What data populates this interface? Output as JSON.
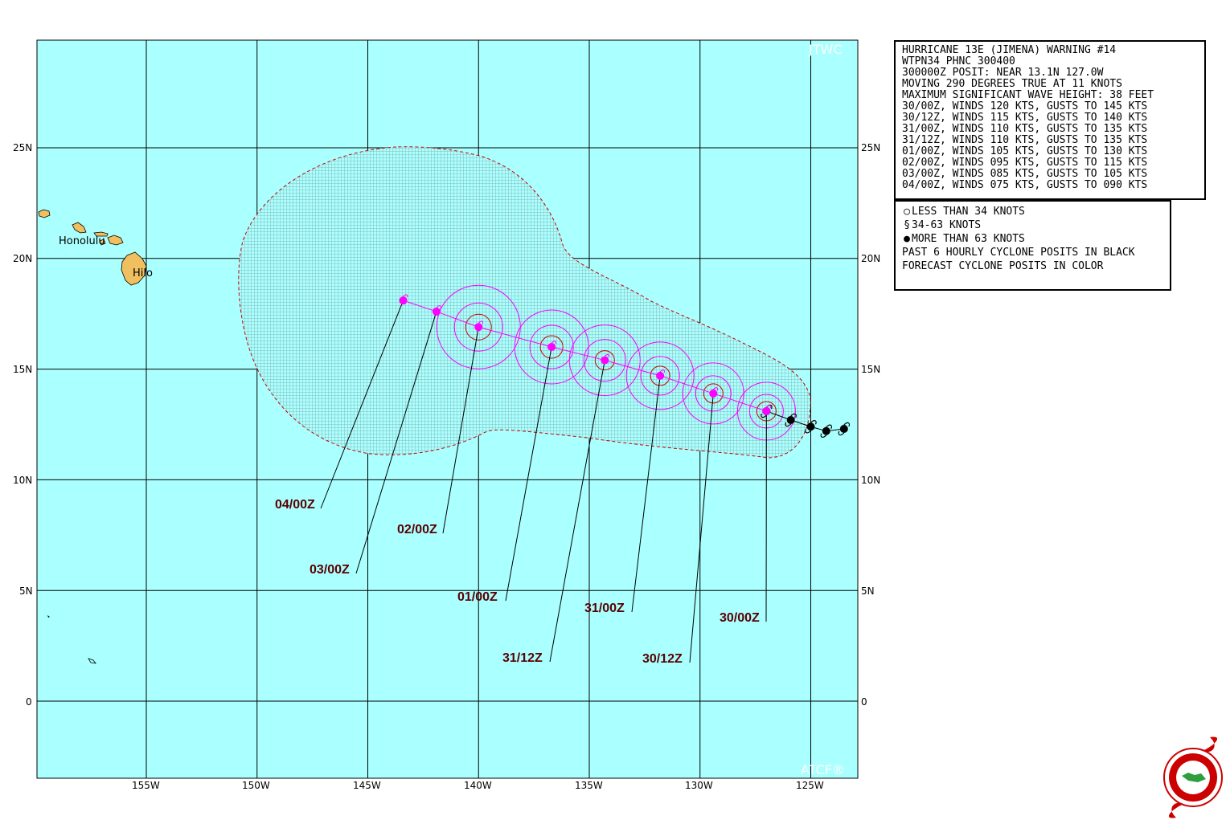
{
  "map": {
    "corner_top": "JTWC",
    "corner_bottom": "ATCF®",
    "lon_ticks": [
      "155W",
      "150W",
      "145W",
      "140W",
      "135W",
      "130W",
      "125W"
    ],
    "lat_ticks": [
      "25N",
      "20N",
      "15N",
      "10N",
      "5N",
      "0"
    ],
    "cities": [
      "Honolulu",
      "Hilo"
    ],
    "colors": {
      "ocean": "#aaffff",
      "land": "#f0c060",
      "forecast": "#ff00ff",
      "past": "#000000",
      "danger": "#cc0000",
      "label": "#5a0000"
    },
    "time_labels": [
      "04/00Z",
      "03/00Z",
      "02/00Z",
      "01/00Z",
      "31/12Z",
      "31/00Z",
      "30/12Z",
      "30/00Z"
    ]
  },
  "warning": {
    "lines": [
      "HURRICANE 13E (JIMENA) WARNING #14",
      "WTPN34 PHNC 300400",
      "300000Z POSIT: NEAR 13.1N 127.0W",
      "MOVING 290 DEGREES TRUE AT 11 KNOTS",
      "MAXIMUM SIGNIFICANT WAVE HEIGHT: 38 FEET",
      "30/00Z, WINDS 120 KTS, GUSTS TO 145 KTS",
      "30/12Z, WINDS 115 KTS, GUSTS TO 140 KTS",
      "31/00Z, WINDS 110 KTS, GUSTS TO 135 KTS",
      "31/12Z, WINDS 110 KTS, GUSTS TO 135 KTS",
      "01/00Z, WINDS 105 KTS, GUSTS TO 130 KTS",
      "02/00Z, WINDS 095 KTS, GUSTS TO 115 KTS",
      "03/00Z, WINDS 085 KTS, GUSTS TO 105 KTS",
      "04/00Z, WINDS 075 KTS, GUSTS TO 090 KTS"
    ]
  },
  "legend": {
    "less_than_34": "LESS THAN 34 KNOTS",
    "between_34_63": "34-63 KNOTS",
    "more_than_63": "MORE THAN 63 KNOTS",
    "past_note": "PAST 6 HOURLY CYCLONE POSITS IN BLACK",
    "forecast_note": "FORECAST CYCLONE POSITS IN COLOR"
  },
  "track": {
    "past": [
      {
        "lat": 12.3,
        "lon": -123.5
      },
      {
        "lat": 12.2,
        "lon": -124.3
      },
      {
        "lat": 12.4,
        "lon": -125.0
      },
      {
        "lat": 12.7,
        "lon": -125.9
      },
      {
        "lat": 13.1,
        "lon": -127.0
      }
    ],
    "forecast": [
      {
        "time": "30/00Z",
        "lat": 13.1,
        "lon": -127.0
      },
      {
        "time": "30/12Z",
        "lat": 13.9,
        "lon": -129.4
      },
      {
        "time": "31/00Z",
        "lat": 14.7,
        "lon": -131.8
      },
      {
        "time": "31/12Z",
        "lat": 15.4,
        "lon": -134.3
      },
      {
        "time": "01/00Z",
        "lat": 16.0,
        "lon": -136.7
      },
      {
        "time": "02/00Z",
        "lat": 16.9,
        "lon": -140.0
      },
      {
        "time": "03/00Z",
        "lat": 17.6,
        "lon": -141.9
      },
      {
        "time": "04/00Z",
        "lat": 18.1,
        "lon": -143.4
      }
    ]
  }
}
